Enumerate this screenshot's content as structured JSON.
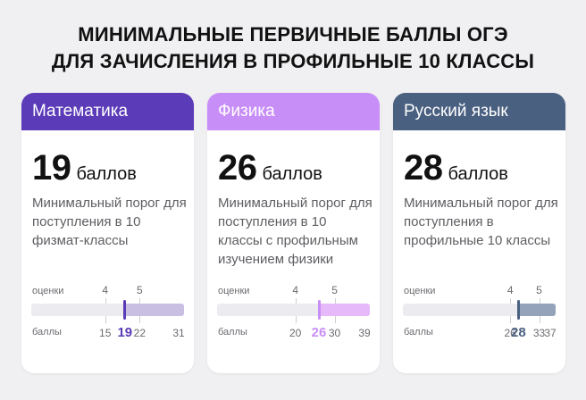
{
  "title": {
    "line1": "МИНИМАЛЬНЫЕ ПЕРВИЧНЫЕ БАЛЛЫ ОГЭ",
    "line2": "ДЛЯ ЗАЧИСЛЕНИЯ В ПРОФИЛЬНЫЕ 10 КЛАССЫ"
  },
  "cards": [
    {
      "subject": "Математика",
      "score": "19",
      "unit": "баллов",
      "desc": "Минимальный порог для поступления в 10 физмат-классы",
      "accent": "#5b3bb8",
      "header_text_color": "#ffffff",
      "fill_color": "#c9bfe3",
      "scale": {
        "grades_label": "оценки",
        "points_label": "баллы",
        "grade4": "4",
        "grade5": "5",
        "p4": "15",
        "current": "19",
        "p5": "22",
        "max": "31",
        "min_value": 0,
        "max_value": 31,
        "p4_value": 15,
        "p5_value": 22,
        "current_value": 19
      }
    },
    {
      "subject": "Физика",
      "score": "26",
      "unit": "баллов",
      "desc": "Минимальный порог для поступления в 10 классы с профильным изучением физики",
      "accent": "#c88ef7",
      "header_text_color": "#ffffff",
      "fill_color": "#e6b9fb",
      "scale": {
        "grades_label": "оценки",
        "points_label": "баллы",
        "grade4": "4",
        "grade5": "5",
        "p4": "20",
        "current": "26",
        "p5": "30",
        "max": "39",
        "min_value": 0,
        "max_value": 39,
        "p4_value": 20,
        "p5_value": 30,
        "current_value": 26
      }
    },
    {
      "subject": "Русский язык",
      "score": "28",
      "unit": "баллов",
      "desc": "Минимальный порог для поступления в профильные 10 классы",
      "accent": "#4a6080",
      "header_text_color": "#ffffff",
      "fill_color": "#94a3ba",
      "scale": {
        "grades_label": "оценки",
        "points_label": "баллы",
        "grade4": "4",
        "grade5": "5",
        "p4": "26",
        "current": "28",
        "p5": "33",
        "max": "37",
        "min_value": 0,
        "max_value": 37,
        "p4_value": 26,
        "p5_value": 33,
        "current_value": 28
      }
    }
  ]
}
